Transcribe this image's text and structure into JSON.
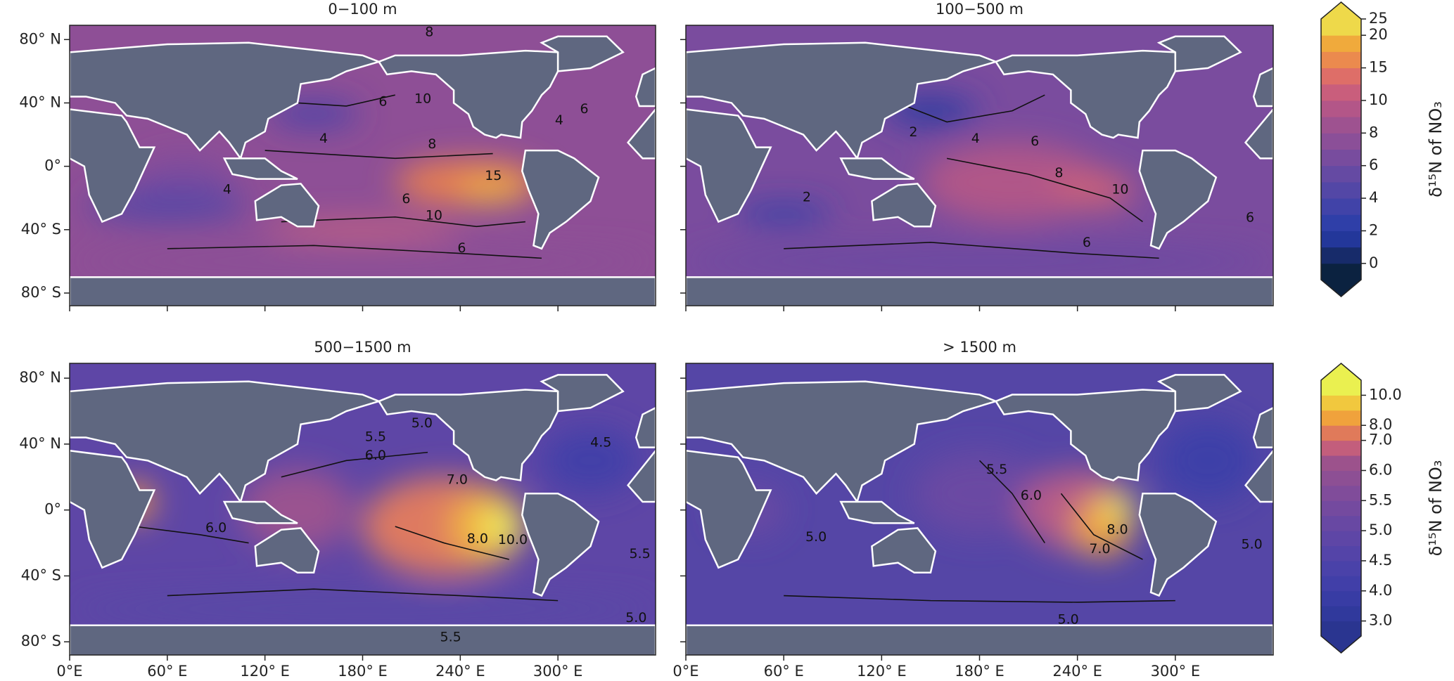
{
  "chart_data": [
    {
      "type": "map",
      "title": "0−100 m",
      "xlim": [
        0,
        360
      ],
      "ylim": [
        -88,
        89
      ],
      "yticks": [
        {
          "value": 80,
          "label": "80° N"
        },
        {
          "value": 40,
          "label": "40° N"
        },
        {
          "value": 0,
          "label": "0°"
        },
        {
          "value": -40,
          "label": "40° S"
        },
        {
          "value": -80,
          "label": "80° S"
        }
      ],
      "contour_labels": [
        "8",
        "10",
        "6",
        "4",
        "6",
        "4",
        "8",
        "15",
        "4",
        "6",
        "10",
        "6"
      ]
    },
    {
      "type": "map",
      "title": "100−500 m",
      "xlim": [
        0,
        360
      ],
      "ylim": [
        -88,
        89
      ],
      "contour_labels": [
        "2",
        "4",
        "6",
        "8",
        "10",
        "6",
        "6",
        "2"
      ]
    },
    {
      "type": "map",
      "title": "500−1500 m",
      "xlim": [
        0,
        360
      ],
      "ylim": [
        -88,
        89
      ],
      "xticks": [
        {
          "value": 0,
          "label": "0°E"
        },
        {
          "value": 60,
          "label": "60° E"
        },
        {
          "value": 120,
          "label": "120° E"
        },
        {
          "value": 180,
          "label": "180° E"
        },
        {
          "value": 240,
          "label": "240° E"
        },
        {
          "value": 300,
          "label": "300° E"
        }
      ],
      "yticks": [
        {
          "value": 80,
          "label": "80° N"
        },
        {
          "value": 40,
          "label": "40° N"
        },
        {
          "value": 0,
          "label": "0°"
        },
        {
          "value": -40,
          "label": "40° S"
        },
        {
          "value": -80,
          "label": "80° S"
        }
      ],
      "contour_labels": [
        "5.0",
        "5.5",
        "6.0",
        "7.0",
        "8.0",
        "10.0",
        "6.0",
        "5.5",
        "5.0",
        "4.5",
        "5.5"
      ]
    },
    {
      "type": "map",
      "title": "> 1500 m",
      "xlim": [
        0,
        360
      ],
      "ylim": [
        -88,
        89
      ],
      "xticks": [
        {
          "value": 0,
          "label": "0°E"
        },
        {
          "value": 60,
          "label": "60° E"
        },
        {
          "value": 120,
          "label": "120° E"
        },
        {
          "value": 180,
          "label": "180° E"
        },
        {
          "value": 240,
          "label": "240° E"
        },
        {
          "value": 300,
          "label": "300° E"
        }
      ],
      "contour_labels": [
        "5.5",
        "6.0",
        "5.0",
        "8.0",
        "7.0",
        "5.0",
        "5.0"
      ]
    }
  ],
  "colorbars": [
    {
      "label": "δ¹⁵N of NO₃",
      "levels": [
        -1,
        0,
        1,
        2,
        3,
        4,
        5,
        6,
        7,
        8,
        9,
        10,
        12.5,
        15,
        17.5,
        20,
        25
      ],
      "colors": [
        "#0b2240",
        "#172b6a",
        "#23379a",
        "#2f3fa8",
        "#4143a8",
        "#5347a6",
        "#654aa3",
        "#784c9e",
        "#8b4f98",
        "#9e5290",
        "#b35688",
        "#c95e7c",
        "#de6e68",
        "#eb8a4e",
        "#f0aa3c",
        "#eed94a"
      ],
      "ticks": [
        0,
        2,
        4,
        6,
        8,
        10,
        15,
        20,
        25
      ]
    },
    {
      "label": "δ¹⁵N of NO₃",
      "levels": [
        2,
        3,
        3.5,
        4,
        4.25,
        4.5,
        4.75,
        5,
        5.25,
        5.5,
        5.75,
        6,
        6.5,
        7,
        8,
        9,
        10,
        11
      ],
      "colors": [
        "#2a3590",
        "#30399c",
        "#383ca4",
        "#413fa8",
        "#4a42a9",
        "#5444a8",
        "#5e46a6",
        "#6848a3",
        "#744a9f",
        "#804c9a",
        "#8d4f94",
        "#9c528c",
        "#c35e7c",
        "#e07a5a",
        "#f0a23c",
        "#f1c83e",
        "#eaf050"
      ],
      "ticks": [
        {
          "value": 3,
          "label": "3.0"
        },
        {
          "value": 4,
          "label": "4.0"
        },
        {
          "value": 4.5,
          "label": "4.5"
        },
        {
          "value": 5,
          "label": "5.0"
        },
        {
          "value": 5.5,
          "label": "5.5"
        },
        {
          "value": 6,
          "label": "6.0"
        },
        {
          "value": 7,
          "label": "7.0"
        },
        {
          "value": 8,
          "label": "8.0"
        },
        {
          "value": 10,
          "label": "10.0"
        }
      ]
    }
  ]
}
